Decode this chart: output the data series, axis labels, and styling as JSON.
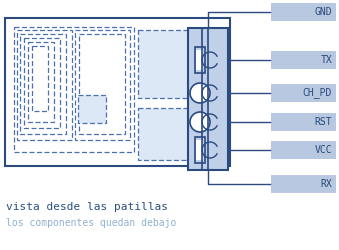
{
  "bg_color": "#ffffff",
  "module_edge_color": "#2a4a80",
  "dashed_color": "#4a70b0",
  "connector_fill": "#c0d0e8",
  "connector_edge": "#2a4a80",
  "label_fill": "#b8c8e0",
  "label_text_color": "#2a4a7a",
  "line_color": "#2a4a80",
  "text_color1": "#2a5080",
  "text_color2": "#90b0d0",
  "bottom_text1": "vista desde las patillas",
  "bottom_text2": "los componentes quedan debajo",
  "all_labels": [
    "GND",
    "TX",
    "CH_PD",
    "RST",
    "VCC",
    "RX"
  ],
  "pin_labels": [
    "TX",
    "CH_PD",
    "RST",
    "VCC"
  ]
}
